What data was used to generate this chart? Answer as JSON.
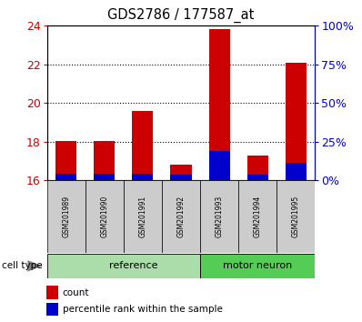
{
  "title": "GDS2786 / 177587_at",
  "samples": [
    "GSM201989",
    "GSM201990",
    "GSM201991",
    "GSM201992",
    "GSM201993",
    "GSM201994",
    "GSM201995"
  ],
  "red_values": [
    18.05,
    18.05,
    19.6,
    16.8,
    23.85,
    17.3,
    22.1
  ],
  "blue_values": [
    0.32,
    0.35,
    0.32,
    0.3,
    1.5,
    0.3,
    0.9
  ],
  "y_min": 16,
  "y_max": 24,
  "y_ticks": [
    16,
    18,
    20,
    22,
    24
  ],
  "y2_ticks": [
    0,
    25,
    50,
    75,
    100
  ],
  "y2_labels": [
    "0%",
    "25%",
    "50%",
    "75%",
    "100%"
  ],
  "bar_color_red": "#cc0000",
  "bar_color_blue": "#0000cc",
  "left_axis_color": "#cc0000",
  "right_axis_color": "#0000cc",
  "sample_box_color": "#cccccc",
  "reference_group_color": "#aaddaa",
  "motor_neuron_group_color": "#55cc55",
  "reference_label": "reference",
  "motor_neuron_label": "motor neuron",
  "reference_count": 4,
  "cell_type_label": "cell type",
  "legend_count": "count",
  "legend_percentile": "percentile rank within the sample",
  "fig_width": 3.98,
  "fig_height": 3.54,
  "dpi": 100
}
